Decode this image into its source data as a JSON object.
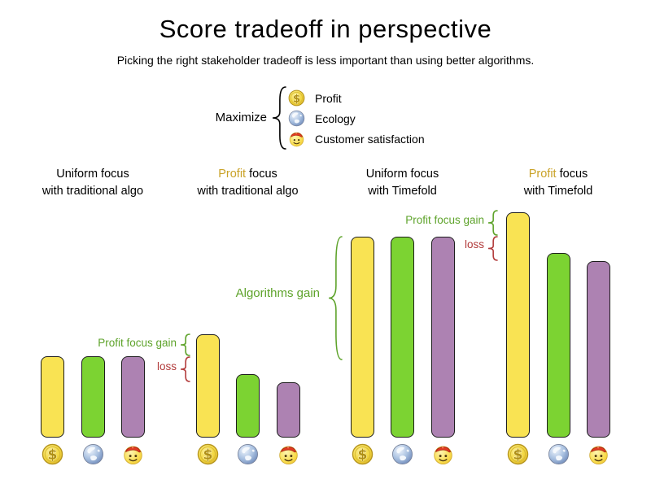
{
  "title": "Score tradeoff in perspective",
  "subtitle": "Picking the right stakeholder tradeoff is less important than using better algorithms.",
  "legend": {
    "label": "Maximize",
    "items": [
      {
        "icon": "profit-coin-icon",
        "label": "Profit"
      },
      {
        "icon": "ecology-globe-icon",
        "label": "Ecology"
      },
      {
        "icon": "customer-satisfaction-smiley-icon",
        "label": "Customer satisfaction"
      }
    ]
  },
  "colors": {
    "profit_bar": "#f9e353",
    "ecology_bar": "#7cd332",
    "customer_bar": "#ad82b2",
    "profit_highlight": "#c9a227",
    "gain_text": "#5ea32b",
    "loss_text": "#b23b3b",
    "bar_border": "#1d1d1d"
  },
  "chart_data": {
    "type": "bar",
    "title": "Score tradeoff in perspective",
    "value_units": "relative score (no axis shown; values estimated from bar heights in px)",
    "grid": false,
    "legend_position": "top-center",
    "series_names": [
      "Profit",
      "Ecology",
      "Customer satisfaction"
    ],
    "groups": [
      {
        "line1_highlight": "",
        "line1_rest": "Uniform focus",
        "line2": "with traditional algo",
        "values": [
          100,
          100,
          100
        ]
      },
      {
        "line1_highlight": "Profit",
        "line1_rest": " focus",
        "line2": "with traditional algo",
        "values": [
          127,
          78,
          68
        ]
      },
      {
        "line1_highlight": "",
        "line1_rest": "Uniform focus",
        "line2": "with Timefold",
        "values": [
          247,
          247,
          247
        ]
      },
      {
        "line1_highlight": "Profit",
        "line1_rest": " focus",
        "line2": "with Timefold",
        "values": [
          277,
          227,
          217
        ]
      }
    ],
    "annotations": [
      {
        "text": "Profit focus gain",
        "kind": "gain"
      },
      {
        "text": "loss",
        "kind": "loss"
      },
      {
        "text": "Algorithms gain",
        "kind": "gain"
      },
      {
        "text": "Profit focus gain",
        "kind": "gain"
      },
      {
        "text": "loss",
        "kind": "loss"
      }
    ]
  }
}
